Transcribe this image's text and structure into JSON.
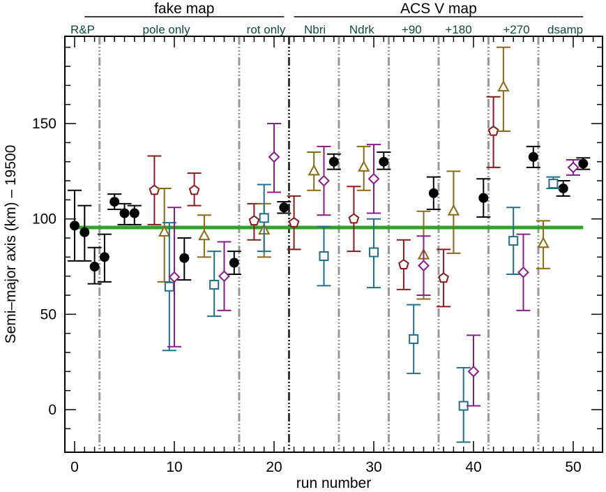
{
  "chart_data": {
    "type": "scatter",
    "title": "",
    "xlabel": "run number",
    "ylabel": "Semi–major axis (km) – 19500",
    "xlim": [
      -1,
      52
    ],
    "ylim": [
      -20,
      197
    ],
    "xticks": [
      0,
      10,
      20,
      30,
      40,
      50
    ],
    "yticks": [
      0,
      50,
      100,
      150
    ],
    "x_minor_step": 1,
    "y_minor_step": 10,
    "grid": false,
    "legend": "none",
    "reference_line": {
      "y": 95.5,
      "x_range": [
        0,
        51
      ],
      "color": "#33a02c"
    },
    "group_headers": [
      {
        "label": "fake map",
        "x_range": [
          1,
          21
        ]
      },
      {
        "label": "ACS V map",
        "x_range": [
          22,
          51
        ]
      }
    ],
    "section_labels": [
      {
        "label": "R&P",
        "x": 0.8
      },
      {
        "label": "pole only",
        "x": 9.2
      },
      {
        "label": "rot only",
        "x": 19.2
      },
      {
        "label": "Nbri",
        "x": 24.1
      },
      {
        "label": "Ndrk",
        "x": 28.8
      },
      {
        "label": "+90",
        "x": 33.8
      },
      {
        "label": "+180",
        "x": 38.5
      },
      {
        "label": "+270",
        "x": 44.3
      },
      {
        "label": "dsamp",
        "x": 49.2
      }
    ],
    "dividers": [
      {
        "x": 2.5,
        "color": "#999999"
      },
      {
        "x": 16.5,
        "color": "#999999"
      },
      {
        "x": 21.5,
        "color": "#333333"
      },
      {
        "x": 26.5,
        "color": "#999999"
      },
      {
        "x": 31.5,
        "color": "#999999"
      },
      {
        "x": 36.5,
        "color": "#999999"
      },
      {
        "x": 41.5,
        "color": "#999999"
      },
      {
        "x": 46.5,
        "color": "#999999"
      }
    ],
    "series": [
      {
        "name": "black-circles",
        "marker": "circle-filled",
        "color": "#000000",
        "points": [
          {
            "x": 0,
            "y": 96.5,
            "lo": 78,
            "hi": 115
          },
          {
            "x": 1,
            "y": 93,
            "lo": 78,
            "hi": 107
          },
          {
            "x": 2,
            "y": 75,
            "lo": 66,
            "hi": 85
          },
          {
            "x": 3,
            "y": 80,
            "lo": 67,
            "hi": 92
          },
          {
            "x": 4,
            "y": 109,
            "lo": 105,
            "hi": 113
          },
          {
            "x": 5,
            "y": 103,
            "lo": 97,
            "hi": 108
          },
          {
            "x": 6,
            "y": 103,
            "lo": 97,
            "hi": 107
          },
          {
            "x": 11,
            "y": 79.5,
            "lo": 68,
            "hi": 90
          },
          {
            "x": 16,
            "y": 77,
            "lo": 71,
            "hi": 83
          },
          {
            "x": 21,
            "y": 106,
            "lo": 103,
            "hi": 109
          },
          {
            "x": 26,
            "y": 130,
            "lo": 126,
            "hi": 134
          },
          {
            "x": 31,
            "y": 130,
            "lo": 126,
            "hi": 135
          },
          {
            "x": 36,
            "y": 113.5,
            "lo": 105,
            "hi": 122
          },
          {
            "x": 41,
            "y": 111,
            "lo": 101,
            "hi": 121
          },
          {
            "x": 46,
            "y": 132.5,
            "lo": 127,
            "hi": 138
          },
          {
            "x": 49,
            "y": 116,
            "lo": 112,
            "hi": 120
          },
          {
            "x": 51,
            "y": 129,
            "lo": 126,
            "hi": 132
          }
        ]
      },
      {
        "name": "red-pentagons",
        "marker": "pentagon",
        "color": "#8b1a1a",
        "points": [
          {
            "x": 8,
            "y": 115,
            "lo": 97,
            "hi": 133
          },
          {
            "x": 12,
            "y": 115,
            "lo": 107,
            "hi": 124
          },
          {
            "x": 18,
            "y": 99,
            "lo": 89,
            "hi": 108
          },
          {
            "x": 22,
            "y": 98,
            "lo": 84,
            "hi": 112
          },
          {
            "x": 28,
            "y": 100,
            "lo": 83,
            "hi": 117
          },
          {
            "x": 33,
            "y": 76,
            "lo": 63,
            "hi": 89
          },
          {
            "x": 37,
            "y": 69,
            "lo": 54,
            "hi": 84
          },
          {
            "x": 42,
            "y": 146,
            "lo": 127,
            "hi": 164
          }
        ]
      },
      {
        "name": "gold-triangles",
        "marker": "triangle",
        "color": "#8b6914",
        "points": [
          {
            "x": 9,
            "y": 93,
            "lo": 67,
            "hi": 116
          },
          {
            "x": 13,
            "y": 91,
            "lo": 80,
            "hi": 102
          },
          {
            "x": 19,
            "y": 94,
            "lo": 80,
            "hi": 108
          },
          {
            "x": 24,
            "y": 125,
            "lo": 115,
            "hi": 135
          },
          {
            "x": 29,
            "y": 127,
            "lo": 115,
            "hi": 138
          },
          {
            "x": 35,
            "y": 81,
            "lo": 58,
            "hi": 104
          },
          {
            "x": 38,
            "y": 104,
            "lo": 82,
            "hi": 125
          },
          {
            "x": 43,
            "y": 169,
            "lo": 146,
            "hi": 190
          },
          {
            "x": 47,
            "y": 87,
            "lo": 74,
            "hi": 99
          }
        ]
      },
      {
        "name": "teal-squares",
        "marker": "square",
        "color": "#1f6f8b",
        "points": [
          {
            "x": 9.5,
            "y": 64.5,
            "lo": 31,
            "hi": 98
          },
          {
            "x": 14,
            "y": 65.5,
            "lo": 49,
            "hi": 83
          },
          {
            "x": 19,
            "y": 100.5,
            "lo": 83,
            "hi": 118
          },
          {
            "x": 25,
            "y": 80.5,
            "lo": 65,
            "hi": 96
          },
          {
            "x": 30,
            "y": 82.5,
            "lo": 64,
            "hi": 100
          },
          {
            "x": 34,
            "y": 37,
            "lo": 19,
            "hi": 55
          },
          {
            "x": 39,
            "y": 2,
            "lo": -17,
            "hi": 22
          },
          {
            "x": 44,
            "y": 88.5,
            "lo": 71,
            "hi": 106
          },
          {
            "x": 48,
            "y": 118.5,
            "lo": 116,
            "hi": 122
          }
        ]
      },
      {
        "name": "purple-diamonds",
        "marker": "diamond",
        "color": "#8b1a8b",
        "points": [
          {
            "x": 10,
            "y": 69.5,
            "lo": 33,
            "hi": 106
          },
          {
            "x": 15,
            "y": 70,
            "lo": 52,
            "hi": 88
          },
          {
            "x": 20,
            "y": 132.5,
            "lo": 114,
            "hi": 150
          },
          {
            "x": 25,
            "y": 120,
            "lo": 102,
            "hi": 138
          },
          {
            "x": 30,
            "y": 121,
            "lo": 103,
            "hi": 139
          },
          {
            "x": 35,
            "y": 75.5,
            "lo": 60,
            "hi": 91
          },
          {
            "x": 40,
            "y": 20,
            "lo": 2,
            "hi": 39
          },
          {
            "x": 45,
            "y": 72,
            "lo": 52,
            "hi": 92
          },
          {
            "x": 50,
            "y": 127,
            "lo": 123,
            "hi": 131
          }
        ]
      }
    ]
  }
}
